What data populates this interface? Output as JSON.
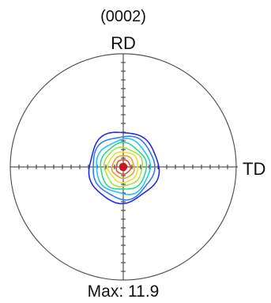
{
  "figure": {
    "title": "(0002)",
    "top_direction_label": "RD",
    "right_direction_label": "TD",
    "max_label": "Max: 11.9"
  },
  "chart_data": {
    "type": "contour",
    "title": "(0002)",
    "axes": {
      "top": "RD",
      "right": "TD"
    },
    "max_intensity": 11.9,
    "peak_location": "center",
    "contour_levels_colors": [
      "#2a2ae0",
      "#2f7ef2",
      "#27c4e6",
      "#2fd88a",
      "#a6e04a",
      "#e6e03a",
      "#f2a02a",
      "#ec4a1e",
      "#c0161a"
    ],
    "outline_color": "#555555",
    "axis_color": "#333333"
  }
}
